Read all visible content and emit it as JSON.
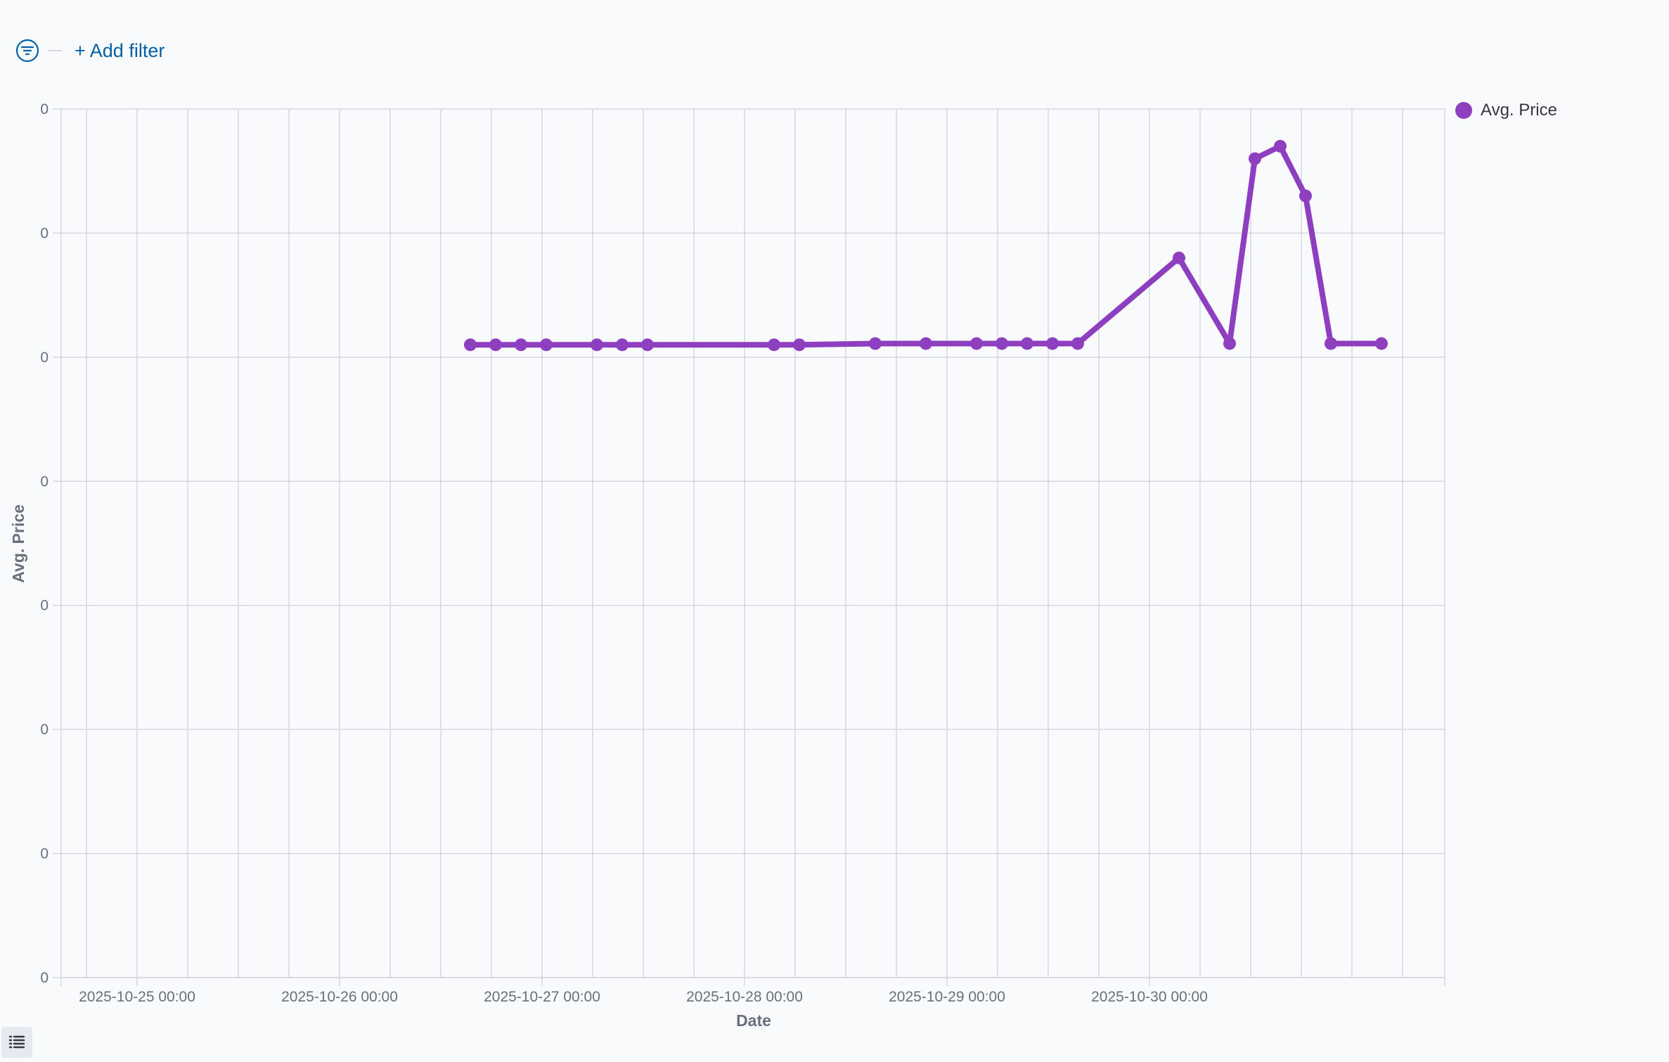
{
  "toolbar": {
    "filter_icon": "filter-icon",
    "add_filter_label": "+ Add filter"
  },
  "legend_toggle_icon": "list-icon",
  "colors": {
    "series": "#8e3fc0",
    "grid": "#d5d8df",
    "axis_text": "#69707d",
    "title_text": "#69707d"
  },
  "chart_data": {
    "type": "line",
    "xlabel": "Date",
    "ylabel": "Avg. Price",
    "x_tick_labels": [
      "2025-10-25 00:00",
      "2025-10-26 00:00",
      "2025-10-27 00:00",
      "2025-10-28 00:00",
      "2025-10-29 00:00",
      "2025-10-30 00:00"
    ],
    "x_range": [
      "2025-10-24 15:00",
      "2025-10-31 11:00"
    ],
    "y_tick_labels": [
      "0",
      "0",
      "0",
      "0",
      "0",
      "0",
      "0",
      "0"
    ],
    "ylim": [
      0,
      7
    ],
    "y_note": "tick labels all print 0; values are on a relative scale read from gridlines",
    "grid": true,
    "legend": {
      "position": "top-right"
    },
    "series": [
      {
        "name": "Avg. Price",
        "points": [
          {
            "x": "2025-10-26 15:30",
            "y": 5.1
          },
          {
            "x": "2025-10-26 18:30",
            "y": 5.1
          },
          {
            "x": "2025-10-26 21:30",
            "y": 5.1
          },
          {
            "x": "2025-10-27 00:30",
            "y": 5.1
          },
          {
            "x": "2025-10-27 06:30",
            "y": 5.1
          },
          {
            "x": "2025-10-27 09:30",
            "y": 5.1
          },
          {
            "x": "2025-10-27 12:30",
            "y": 5.1
          },
          {
            "x": "2025-10-28 03:30",
            "y": 5.1
          },
          {
            "x": "2025-10-28 06:30",
            "y": 5.1
          },
          {
            "x": "2025-10-28 15:30",
            "y": 5.11
          },
          {
            "x": "2025-10-28 21:30",
            "y": 5.11
          },
          {
            "x": "2025-10-29 03:30",
            "y": 5.11
          },
          {
            "x": "2025-10-29 06:30",
            "y": 5.11
          },
          {
            "x": "2025-10-29 09:30",
            "y": 5.11
          },
          {
            "x": "2025-10-29 12:30",
            "y": 5.11
          },
          {
            "x": "2025-10-29 15:30",
            "y": 5.11
          },
          {
            "x": "2025-10-30 03:30",
            "y": 5.8
          },
          {
            "x": "2025-10-30 09:30",
            "y": 5.11
          },
          {
            "x": "2025-10-30 12:30",
            "y": 6.6
          },
          {
            "x": "2025-10-30 15:30",
            "y": 6.7
          },
          {
            "x": "2025-10-30 18:30",
            "y": 6.3
          },
          {
            "x": "2025-10-30 21:30",
            "y": 5.11
          },
          {
            "x": "2025-10-31 03:30",
            "y": 5.11
          }
        ]
      }
    ]
  }
}
